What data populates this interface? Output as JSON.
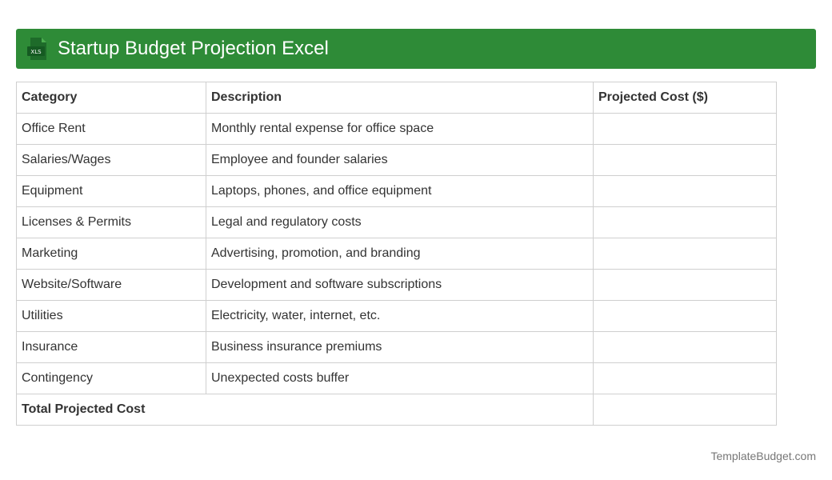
{
  "header": {
    "icon": "xls-file-icon",
    "icon_text": "XLS",
    "title": "Startup Budget Projection Excel",
    "background": "#2e8b37"
  },
  "table": {
    "columns": [
      "Category",
      "Description",
      "Projected Cost ($)"
    ],
    "rows": [
      {
        "category": "Office Rent",
        "description": "Monthly rental expense for office space",
        "cost": ""
      },
      {
        "category": "Salaries/Wages",
        "description": "Employee and founder salaries",
        "cost": ""
      },
      {
        "category": "Equipment",
        "description": "Laptops, phones, and office equipment",
        "cost": ""
      },
      {
        "category": "Licenses & Permits",
        "description": "Legal and regulatory costs",
        "cost": ""
      },
      {
        "category": "Marketing",
        "description": "Advertising, promotion, and branding",
        "cost": ""
      },
      {
        "category": "Website/Software",
        "description": "Development and software subscriptions",
        "cost": ""
      },
      {
        "category": "Utilities",
        "description": "Electricity, water, internet, etc.",
        "cost": ""
      },
      {
        "category": "Insurance",
        "description": "Business insurance premiums",
        "cost": ""
      },
      {
        "category": "Contingency",
        "description": "Unexpected costs buffer",
        "cost": ""
      }
    ],
    "total": {
      "label": "Total Projected Cost",
      "cost": ""
    }
  },
  "footer": {
    "credit": "TemplateBudget.com"
  }
}
